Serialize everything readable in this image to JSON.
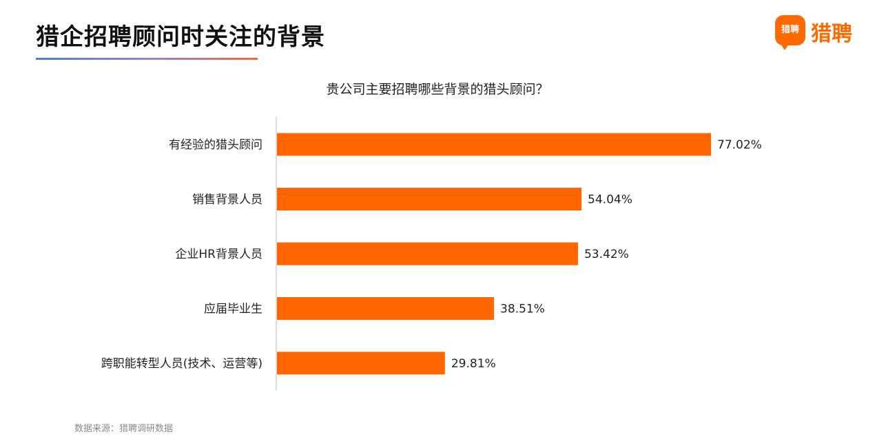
{
  "page": {
    "title": "猎企招聘顾问时关注的背景",
    "source": "数据来源：猎聘调研数据"
  },
  "logo": {
    "badge_text": "猎聘",
    "text": "猎聘",
    "color": "#ff6a00"
  },
  "chart_data": {
    "type": "bar",
    "orientation": "horizontal",
    "title": "贵公司主要招聘哪些背景的猎头顾问？",
    "categories": [
      "有经验的猎头顾问",
      "销售背景人员",
      "企业HR背景人员",
      "应届毕业生",
      "跨职能转型人员(技术、运营等)"
    ],
    "values": [
      77.02,
      54.04,
      53.42,
      38.51,
      29.81
    ],
    "labels": [
      "77.02%",
      "54.04%",
      "53.42%",
      "38.51%",
      "29.81%"
    ],
    "unit": "%",
    "xlim": [
      0,
      100
    ],
    "grid": false,
    "bar_color": "#ff6600"
  }
}
